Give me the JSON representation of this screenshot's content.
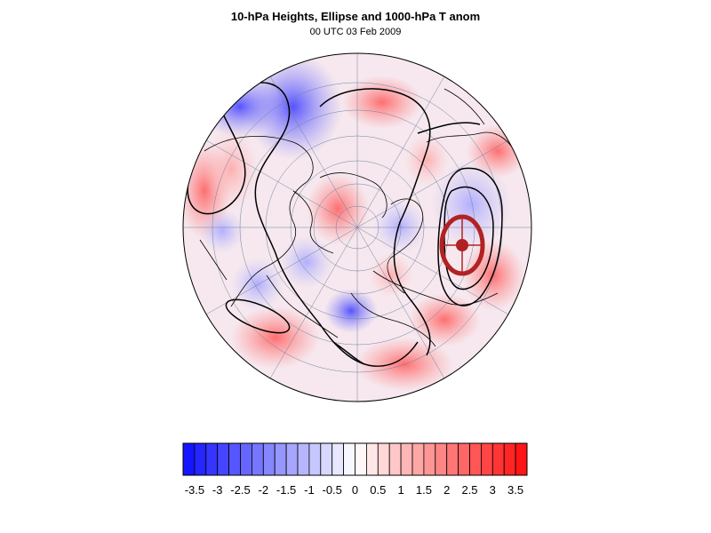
{
  "header": {
    "title": "10-hPa Heights, Ellipse and 1000-hPa T anom",
    "subtitle": "00 UTC 03 Feb 2009"
  },
  "colorbar": {
    "min": -3.75,
    "max": 3.75,
    "step": 0.25,
    "tick_labels": [
      "-3.5",
      "-3",
      "-2.5",
      "-2",
      "-1.5",
      "-1",
      "-0.5",
      "0",
      "0.5",
      "1",
      "1.5",
      "2",
      "2.5",
      "3",
      "3.5"
    ],
    "low_color": "#0d0dff",
    "high_color": "#ff0d0d",
    "mid_color": "#ffffff"
  },
  "map": {
    "projection": "polar-stereographic (northern hemisphere)",
    "ellipse_color": "#b22222",
    "contour_color": "#000000"
  }
}
